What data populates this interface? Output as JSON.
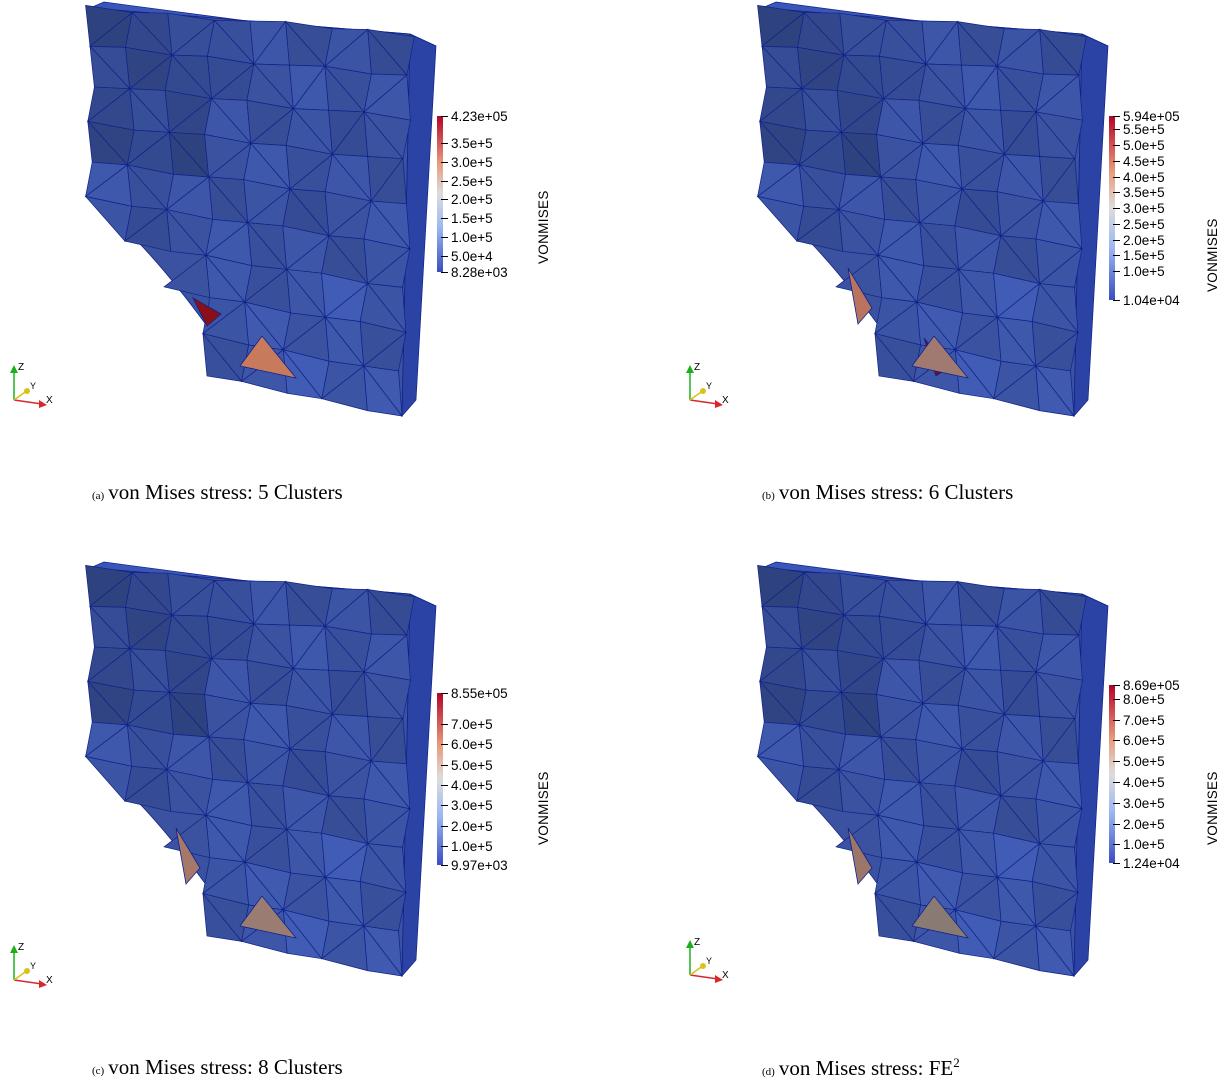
{
  "figure": {
    "panels": [
      {
        "id": "a",
        "tag": "(a)",
        "caption": "von Mises stress: 5 Clusters",
        "caption_sup": "",
        "colorbar_title": "VONMISES",
        "ticks": [
          "4.23e+05",
          "3.5e+5",
          "3.0e+5",
          "2.5e+5",
          "2.0e+5",
          "1.5e+5",
          "1.0e+5",
          "5.0e+4",
          "8.28e+03"
        ],
        "tick_values": [
          423000,
          350000,
          300000,
          250000,
          200000,
          150000,
          100000,
          50000,
          8280
        ],
        "hot_cells": [
          {
            "cell": "hole-mid",
            "color": "#8a0f16"
          },
          {
            "cell": "bottom-a",
            "color": "#c87a5c"
          }
        ]
      },
      {
        "id": "b",
        "tag": "(b)",
        "caption": "von Mises stress: 6 Clusters",
        "caption_sup": "",
        "colorbar_title": "VONMISES",
        "ticks": [
          "5.94e+05",
          "5.5e+5",
          "5.0e+5",
          "4.5e+5",
          "4.0e+5",
          "3.5e+5",
          "3.0e+5",
          "2.5e+5",
          "2.0e+5",
          "1.5e+5",
          "1.0e+5",
          "1.04e+04"
        ],
        "tick_values": [
          594000,
          550000,
          500000,
          450000,
          400000,
          350000,
          300000,
          250000,
          200000,
          150000,
          100000,
          10400
        ],
        "hot_cells": [
          {
            "cell": "hole-low",
            "color": "#b87460"
          },
          {
            "cell": "bottom-b",
            "color": "#7e0a12"
          },
          {
            "cell": "bottom-a",
            "color": "#a07a70"
          }
        ]
      },
      {
        "id": "c",
        "tag": "(c)",
        "caption": "von Mises stress: 8 Clusters",
        "caption_sup": "",
        "colorbar_title": "VONMISES",
        "ticks": [
          "8.55e+05",
          "7.0e+5",
          "6.0e+5",
          "5.0e+5",
          "4.0e+5",
          "3.0e+5",
          "2.0e+5",
          "1.0e+5",
          "9.97e+03"
        ],
        "tick_values": [
          855000,
          700000,
          600000,
          500000,
          400000,
          300000,
          200000,
          100000,
          9970
        ],
        "hot_cells": [
          {
            "cell": "hole-low",
            "color": "#a5786a"
          },
          {
            "cell": "bottom-a",
            "color": "#9a7c72"
          }
        ]
      },
      {
        "id": "d",
        "tag": "(d)",
        "caption": "von Mises stress: FE",
        "caption_sup": "2",
        "colorbar_title": "VONMISES",
        "ticks": [
          "8.69e+05",
          "8.0e+5",
          "7.0e+5",
          "6.0e+5",
          "5.0e+5",
          "4.0e+5",
          "3.0e+5",
          "2.0e+5",
          "1.0e+5",
          "1.24e+04"
        ],
        "tick_values": [
          869000,
          800000,
          700000,
          600000,
          500000,
          400000,
          300000,
          200000,
          100000,
          12400
        ],
        "hot_cells": [
          {
            "cell": "hole-low",
            "color": "#9c7668"
          },
          {
            "cell": "bottom-a",
            "color": "#8a7a74"
          }
        ]
      }
    ],
    "axes_labels": {
      "x": "X",
      "y": "Y",
      "z": "Z"
    },
    "colors": {
      "mesh_line": "#10228a",
      "plate_base": "#3a52a0",
      "plate_dark": "#2a3f8f",
      "plate_side": "#2c43a6",
      "plate_top": "#3b55b8",
      "cbar_top": "#b40426",
      "cbar_mid": "#dddddd",
      "cbar_bottom": "#3b4cc0"
    }
  }
}
